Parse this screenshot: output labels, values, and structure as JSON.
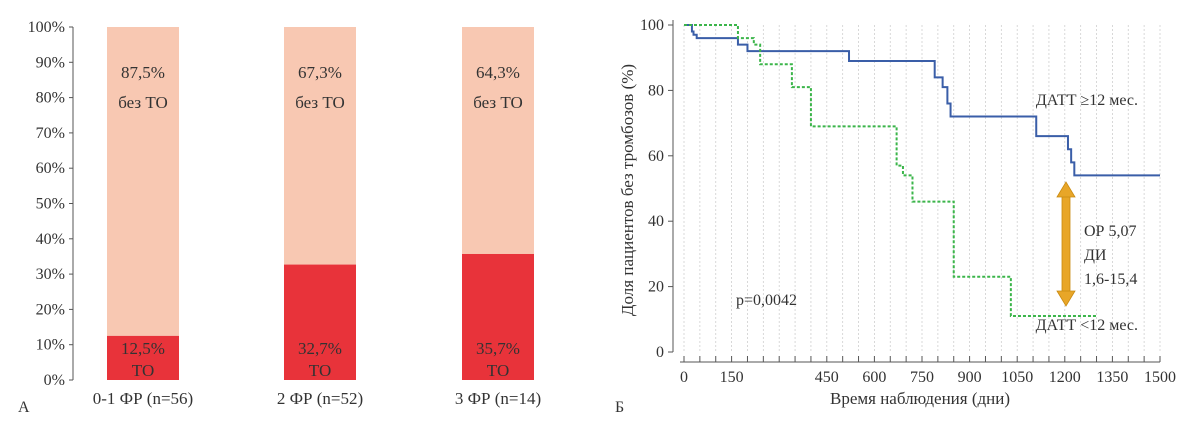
{
  "chart_data": [
    {
      "type": "bar",
      "panel_label": "А",
      "stacked": true,
      "y_ticks": [
        "0%",
        "10%",
        "20%",
        "30%",
        "40%",
        "50%",
        "60%",
        "70%",
        "80%",
        "90%",
        "100%"
      ],
      "ylim": [
        0,
        100
      ],
      "categories": [
        "0-1 ФР (n=56)",
        "2 ФР (n=52)",
        "3 ФР (n=14)"
      ],
      "series": [
        {
          "name": "ТО",
          "values": [
            12.5,
            32.7,
            35.7
          ],
          "labels": [
            "12,5%",
            "32,7%",
            "35,7%"
          ]
        },
        {
          "name": "без ТО",
          "values": [
            87.5,
            67.3,
            64.3
          ],
          "labels": [
            "87,5%",
            "67,3%",
            "64,3%"
          ]
        }
      ],
      "colors": {
        "to": "#e8333a",
        "bez_to": "#f8c8b2"
      }
    },
    {
      "type": "line",
      "panel_label": "Б",
      "xlabel": "Время наблюдения (дни)",
      "ylabel": "Доля пациентов без тромбозов (%)",
      "xlim": [
        0,
        1500
      ],
      "ylim": [
        0,
        100
      ],
      "x_ticks": [
        "0",
        "150",
        "450",
        "600",
        "750",
        "900",
        "1050",
        "1200",
        "1350",
        "1500"
      ],
      "y_ticks": [
        "0",
        "20",
        "40",
        "60",
        "80",
        "100"
      ],
      "series": [
        {
          "name": "ДАТТ ≥12 мес.",
          "color": "#3a5ea8",
          "style": "solid",
          "x": [
            0,
            25,
            30,
            40,
            170,
            200,
            520,
            790,
            815,
            830,
            840,
            1110,
            1210,
            1220,
            1230,
            1500
          ],
          "y": [
            100,
            98,
            97,
            96,
            94,
            92,
            89,
            84,
            81,
            76,
            72,
            66,
            62,
            58,
            54,
            54
          ]
        },
        {
          "name": "ДАТТ <12 мес.",
          "color": "#3bb54a",
          "style": "dotted",
          "x": [
            0,
            170,
            220,
            240,
            340,
            400,
            670,
            690,
            720,
            850,
            1030,
            1300
          ],
          "y": [
            100,
            96,
            94,
            88,
            81,
            69,
            57,
            54,
            46,
            23,
            11,
            11
          ]
        }
      ],
      "annotations": {
        "pvalue": "p=0,0042",
        "hr_lines": [
          "ОР 5,07",
          "ДИ",
          "1,6-15,4"
        ],
        "arrow_color": "#e8a628"
      }
    }
  ]
}
